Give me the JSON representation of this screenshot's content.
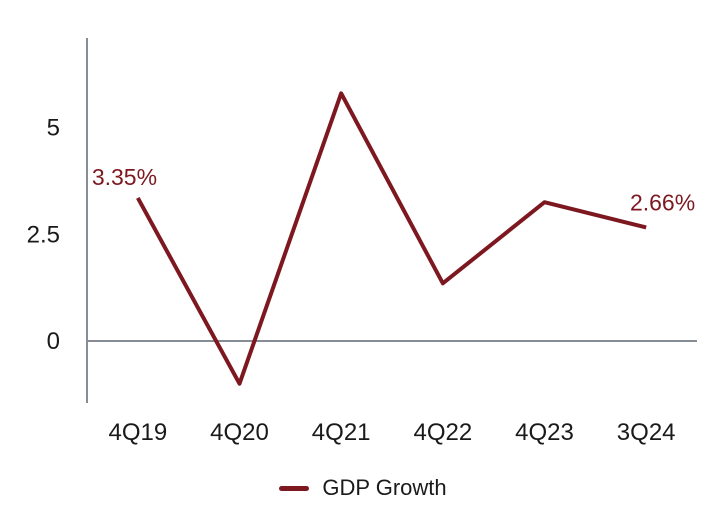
{
  "chart_data": {
    "type": "line",
    "categories": [
      "4Q19",
      "4Q20",
      "4Q21",
      "4Q22",
      "4Q23",
      "3Q24"
    ],
    "series": [
      {
        "name": "GDP Growth",
        "values": [
          3.35,
          -1.0,
          5.8,
          1.35,
          3.25,
          2.66
        ]
      }
    ],
    "point_labels": {
      "first": "3.35%",
      "last": "2.66%"
    },
    "yticks": [
      {
        "label": "0",
        "value": 0
      },
      {
        "label": "2.5",
        "value": 2.5
      },
      {
        "label": "5",
        "value": 5
      }
    ],
    "ylim": [
      -1.45,
      7.1
    ],
    "grid": "zero-line-only",
    "legend": {
      "position": "bottom-center",
      "entries": [
        {
          "label": "GDP Growth",
          "color": "#7d1820"
        }
      ]
    },
    "colors": {
      "line": "#7d1820",
      "data_label": "#7d1820",
      "axis": "#878d94",
      "text": "#1a1a1a",
      "background": "#ffffff"
    }
  }
}
